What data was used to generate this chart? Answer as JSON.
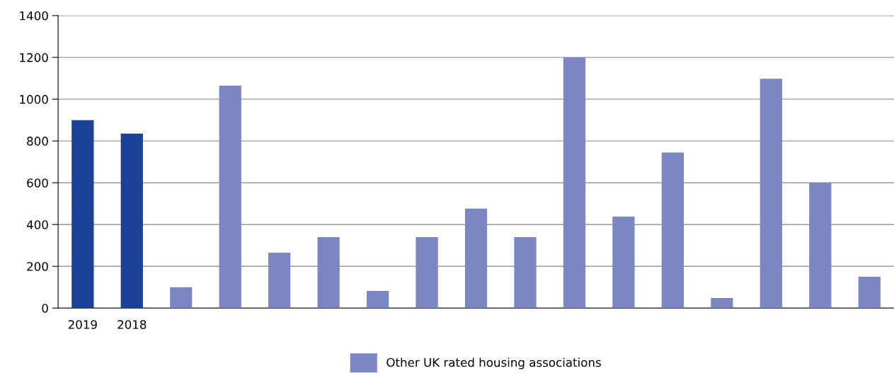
{
  "chart_data": {
    "type": "bar",
    "categories": [
      "2019",
      "2018",
      null,
      null,
      null,
      null,
      null,
      null,
      null,
      null,
      null,
      null,
      null,
      null,
      null,
      null,
      null
    ],
    "series": [
      {
        "color": "#1a4198",
        "values": [
          900,
          835,
          null,
          null,
          null,
          null,
          null,
          null,
          null,
          null,
          null,
          null,
          null,
          null,
          null,
          null,
          null
        ]
      },
      {
        "name": "Other UK rated housing associations",
        "color": "#7b86c2",
        "values": [
          null,
          null,
          100,
          1065,
          265,
          340,
          82,
          340,
          476,
          340,
          1200,
          438,
          745,
          48,
          1098,
          600,
          150
        ]
      }
    ],
    "ylim": [
      0,
      1400
    ],
    "yticks": [
      0,
      200,
      400,
      600,
      800,
      1000,
      1200,
      1400
    ],
    "grid": "y",
    "legend": "bottom"
  }
}
